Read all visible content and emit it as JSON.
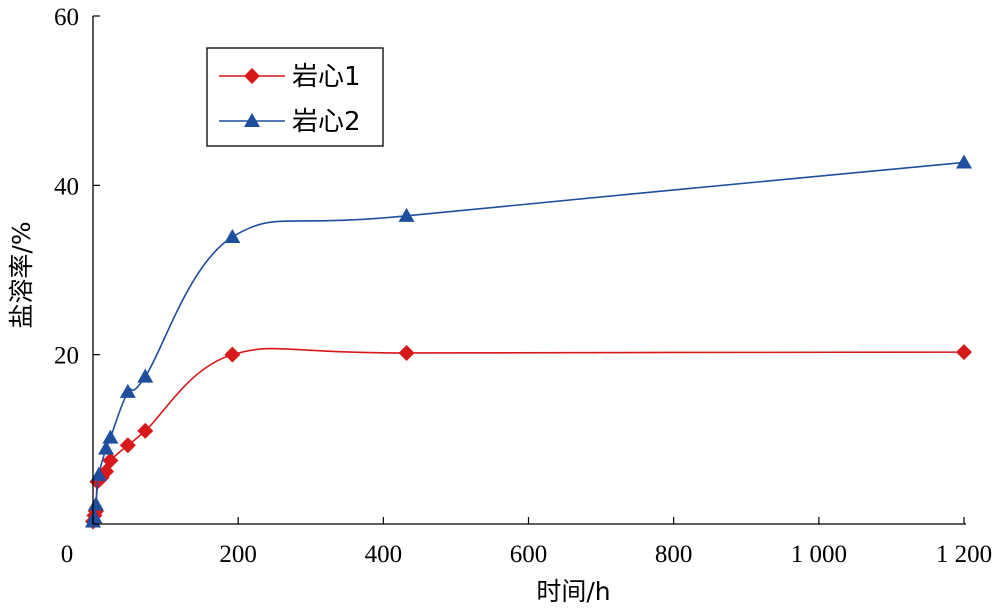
{
  "chart_data": {
    "type": "line",
    "xlabel": "时间/h",
    "ylabel": "盐溶率/%",
    "xlim": [
      0,
      1200
    ],
    "ylim": [
      0,
      60
    ],
    "x_ticks": [
      0,
      200,
      400,
      600,
      800,
      1000,
      1200
    ],
    "x_tick_labels": [
      "0",
      "200",
      "400",
      "600",
      "800",
      "1 000",
      "1 200"
    ],
    "y_ticks": [
      20,
      40,
      60
    ],
    "y_tick_labels": [
      "20",
      "40",
      "60"
    ],
    "grid": false,
    "legend": {
      "position": "top-left"
    },
    "series": [
      {
        "name": "岩心1",
        "color": "#d7191c",
        "marker": "diamond",
        "points": [
          [
            0,
            0.3
          ],
          [
            2,
            1.0
          ],
          [
            4,
            1.5
          ],
          [
            6,
            5.0
          ],
          [
            12,
            5.5
          ],
          [
            18,
            6.2
          ],
          [
            24,
            7.5
          ],
          [
            48,
            9.3
          ],
          [
            72,
            11.0
          ],
          [
            192,
            20.0
          ],
          [
            432,
            20.2
          ],
          [
            1200,
            20.3
          ]
        ]
      },
      {
        "name": "岩心2",
        "color": "#1f4e9c",
        "marker": "triangle",
        "points": [
          [
            0,
            0.3
          ],
          [
            2,
            0.8
          ],
          [
            4,
            2.3
          ],
          [
            8,
            5.8
          ],
          [
            18,
            8.9
          ],
          [
            24,
            10.2
          ],
          [
            48,
            15.6
          ],
          [
            72,
            17.4
          ],
          [
            192,
            33.9
          ],
          [
            432,
            36.4
          ],
          [
            1200,
            42.7
          ]
        ]
      }
    ]
  }
}
